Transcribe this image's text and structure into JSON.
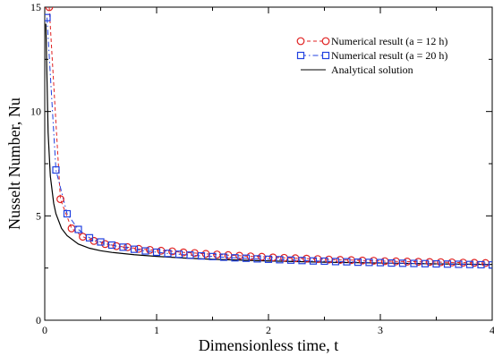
{
  "chart_data": {
    "type": "line",
    "title": "",
    "xlabel": "Dimensionless time, t",
    "ylabel": "Nusselt Number, Nu",
    "xlim": [
      0,
      4
    ],
    "ylim": [
      0,
      15
    ],
    "x_ticks": [
      "0",
      "1",
      "2",
      "3",
      "4"
    ],
    "y_ticks": [
      "0",
      "5",
      "10",
      "15"
    ],
    "grid": false,
    "legend_position": "top-right",
    "series": [
      {
        "name": "Numerical result (a = 12 h)",
        "style": "circle-dashed",
        "color": "#e02020",
        "x": [
          0.04,
          0.14,
          0.24,
          0.34,
          0.44,
          0.54,
          0.64,
          0.74,
          0.84,
          0.94,
          1.04,
          1.14,
          1.24,
          1.34,
          1.44,
          1.54,
          1.64,
          1.74,
          1.84,
          1.94,
          2.04,
          2.14,
          2.24,
          2.34,
          2.44,
          2.54,
          2.64,
          2.74,
          2.84,
          2.94,
          3.04,
          3.14,
          3.24,
          3.34,
          3.44,
          3.54,
          3.64,
          3.74,
          3.84,
          3.94
        ],
        "y": [
          15.0,
          5.8,
          4.4,
          4.0,
          3.8,
          3.65,
          3.55,
          3.5,
          3.42,
          3.37,
          3.33,
          3.3,
          3.25,
          3.22,
          3.18,
          3.15,
          3.12,
          3.09,
          3.06,
          3.04,
          3.01,
          2.99,
          2.97,
          2.95,
          2.93,
          2.91,
          2.89,
          2.88,
          2.86,
          2.85,
          2.83,
          2.82,
          2.81,
          2.8,
          2.79,
          2.78,
          2.77,
          2.76,
          2.75,
          2.74
        ]
      },
      {
        "name": "Numerical result (a = 20 h)",
        "style": "square-dashdot",
        "color": "#2040e0",
        "x": [
          0.02,
          0.1,
          0.2,
          0.3,
          0.4,
          0.5,
          0.6,
          0.7,
          0.8,
          0.9,
          1.0,
          1.1,
          1.2,
          1.3,
          1.4,
          1.5,
          1.6,
          1.7,
          1.8,
          1.9,
          2.0,
          2.1,
          2.2,
          2.3,
          2.4,
          2.5,
          2.6,
          2.7,
          2.8,
          2.9,
          3.0,
          3.1,
          3.2,
          3.3,
          3.4,
          3.5,
          3.6,
          3.7,
          3.8,
          3.9,
          4.0
        ],
        "y": [
          14.5,
          7.2,
          5.1,
          4.35,
          3.95,
          3.75,
          3.6,
          3.5,
          3.4,
          3.32,
          3.26,
          3.2,
          3.16,
          3.12,
          3.08,
          3.05,
          3.02,
          2.99,
          2.97,
          2.94,
          2.92,
          2.9,
          2.88,
          2.86,
          2.84,
          2.83,
          2.81,
          2.8,
          2.78,
          2.77,
          2.76,
          2.74,
          2.73,
          2.72,
          2.71,
          2.7,
          2.69,
          2.68,
          2.67,
          2.66,
          2.65
        ]
      },
      {
        "name": "Analytical solution",
        "style": "solid",
        "color": "#000000",
        "x": [
          0.01,
          0.03,
          0.05,
          0.08,
          0.1,
          0.15,
          0.2,
          0.3,
          0.4,
          0.5,
          0.6,
          0.8,
          1.0,
          1.25,
          1.5,
          2.0,
          2.5,
          3.0,
          3.5,
          4.0
        ],
        "y": [
          14.2,
          9.0,
          6.9,
          5.6,
          5.1,
          4.4,
          4.05,
          3.65,
          3.45,
          3.33,
          3.25,
          3.14,
          3.06,
          2.98,
          2.92,
          2.84,
          2.78,
          2.74,
          2.7,
          2.67
        ]
      }
    ]
  }
}
